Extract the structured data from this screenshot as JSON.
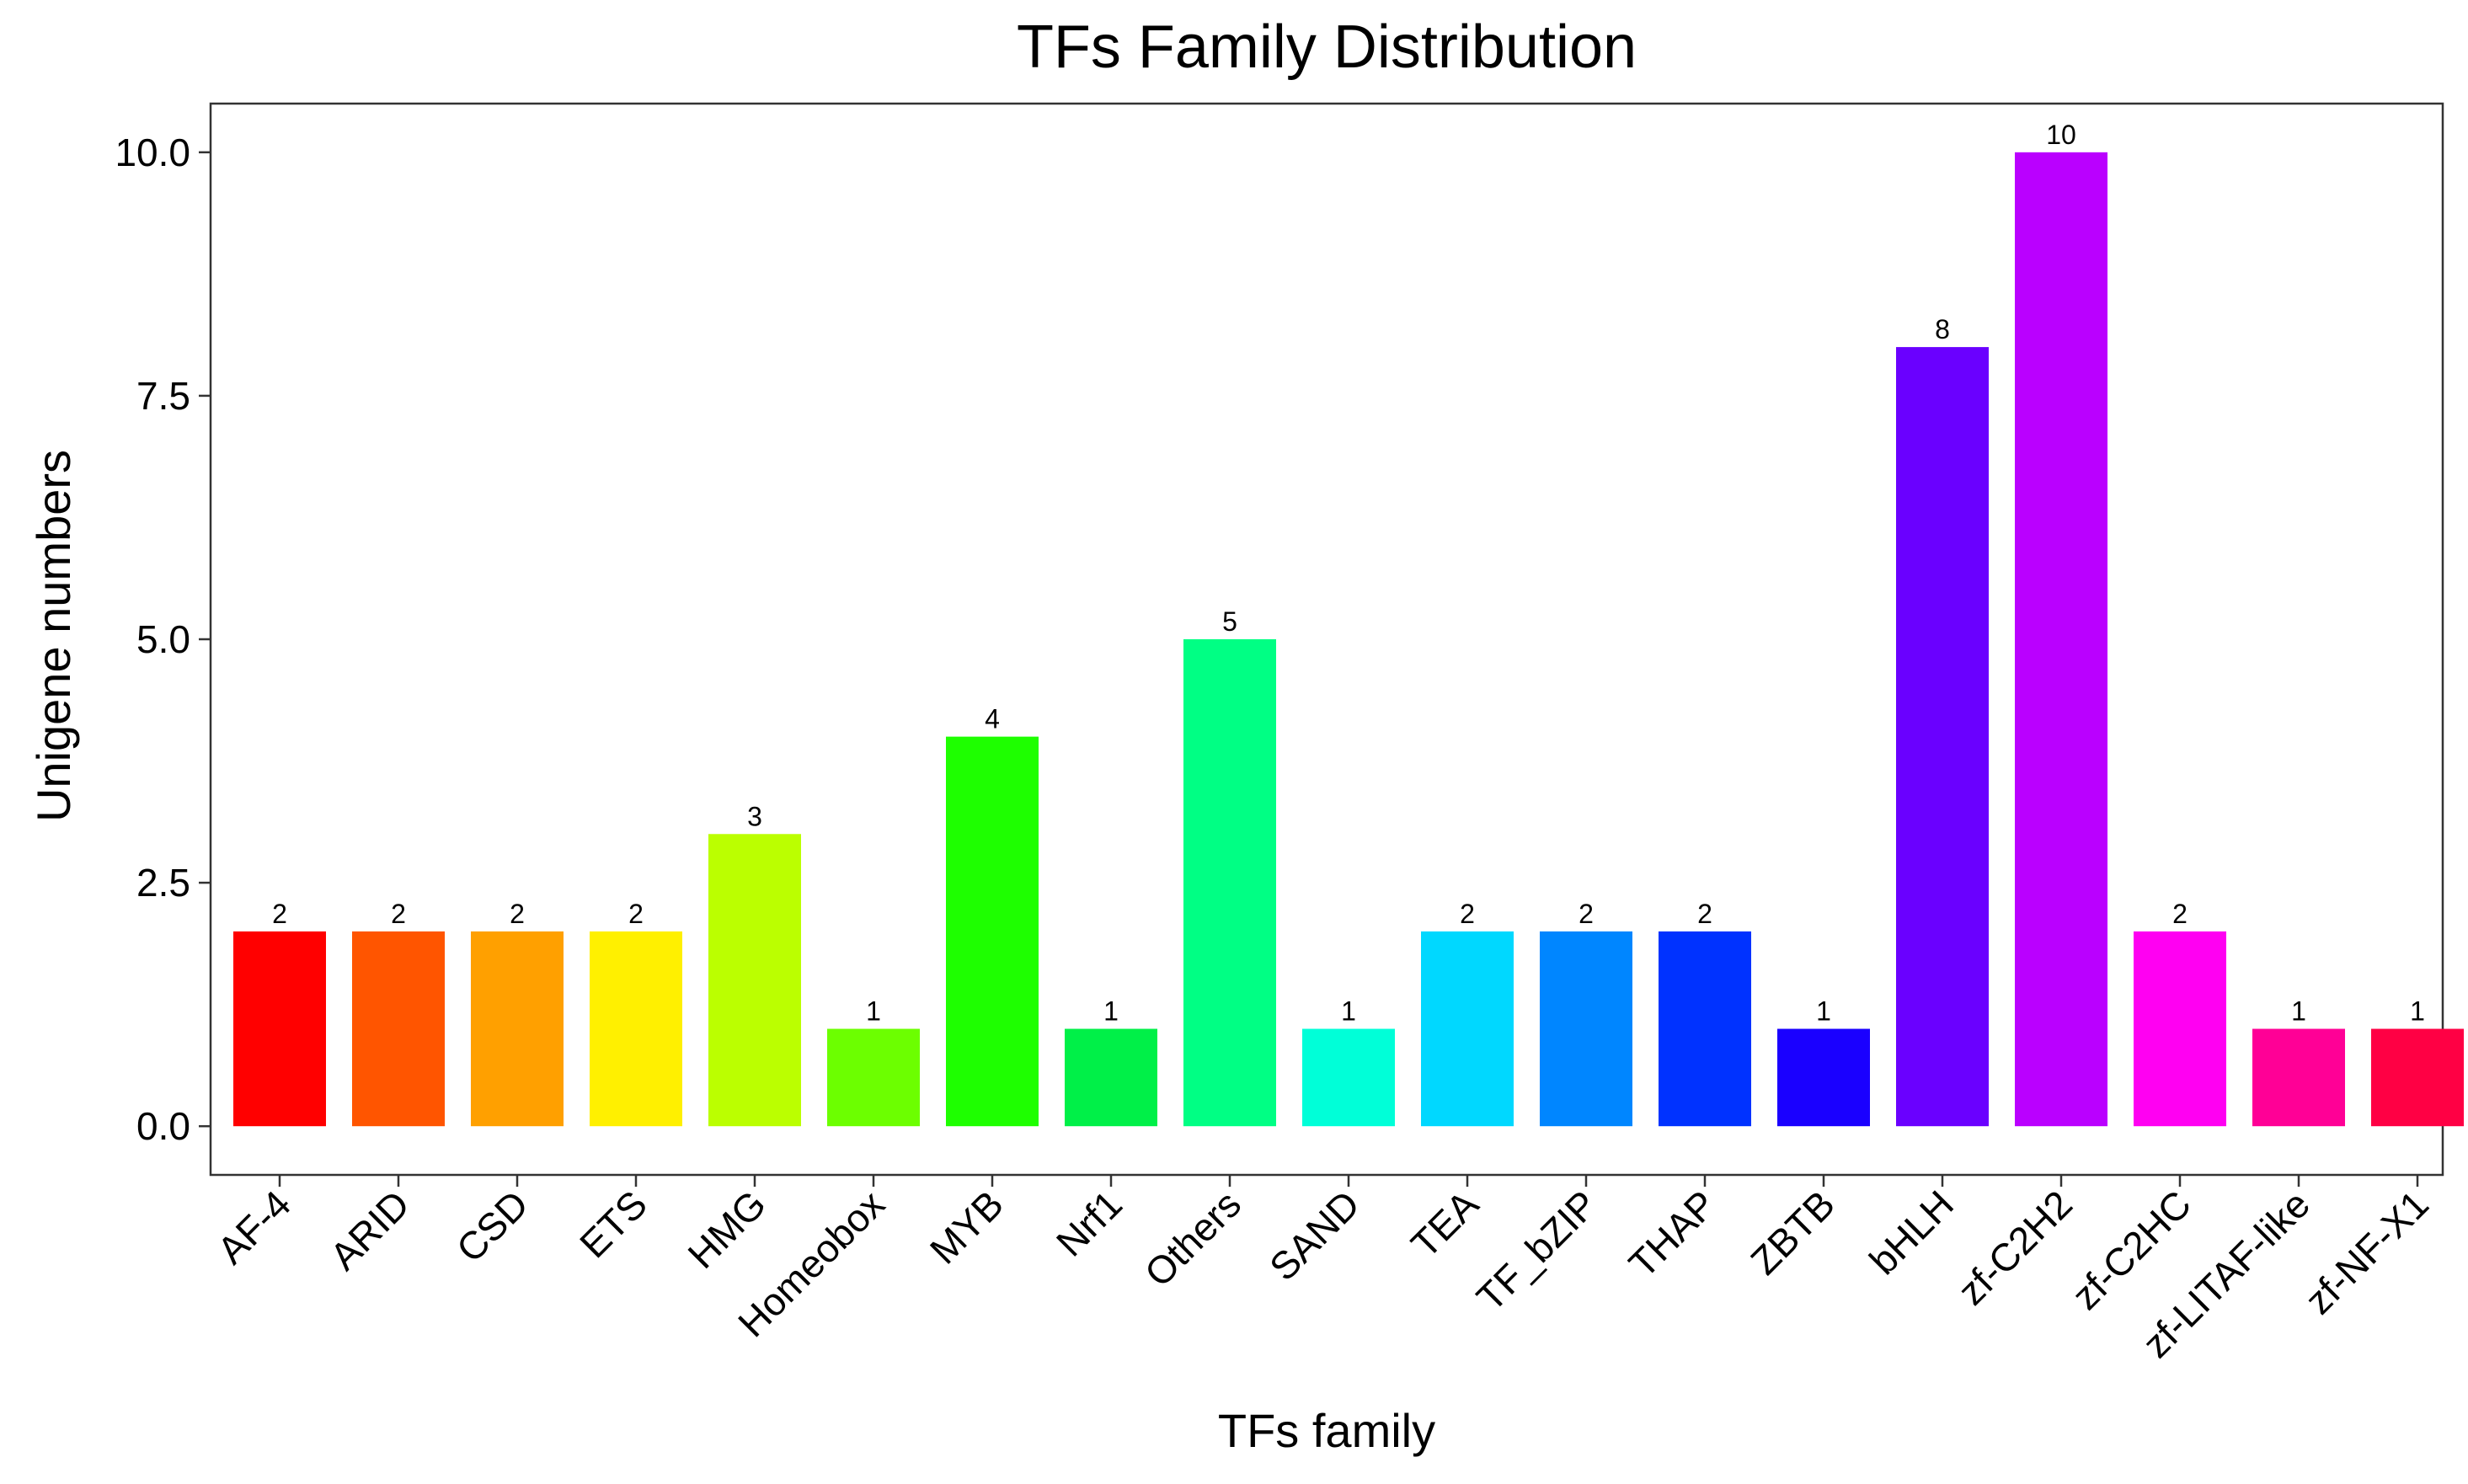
{
  "chart_data": {
    "type": "bar",
    "title": "TFs Family Distribution",
    "xlabel": "TFs family",
    "ylabel": "Unigene numbers",
    "categories": [
      "AF-4",
      "ARID",
      "CSD",
      "ETS",
      "HMG",
      "Homeobox",
      "MYB",
      "Nrf1",
      "Others",
      "SAND",
      "TEA",
      "TF_bZIP",
      "THAP",
      "ZBTB",
      "bHLH",
      "zf-C2H2",
      "zf-C2HC",
      "zf-LITAF-like",
      "zf-NF-X1"
    ],
    "values": [
      2,
      2,
      2,
      2,
      3,
      1,
      4,
      1,
      5,
      1,
      2,
      2,
      2,
      1,
      8,
      10,
      2,
      1,
      1
    ],
    "value_labels": [
      "2",
      "2",
      "2",
      "2",
      "3",
      "1",
      "4",
      "1",
      "5",
      "1",
      "2",
      "2",
      "2",
      "1",
      "8",
      "10",
      "2",
      "1",
      "1"
    ],
    "colors": [
      "#FF0000",
      "#FF5500",
      "#FFA000",
      "#FFF000",
      "#BBFF00",
      "#6CFF00",
      "#1EFF00",
      "#00F048",
      "#00FF84",
      "#00FFD8",
      "#00D8FF",
      "#0086FF",
      "#0032FF",
      "#1A00FF",
      "#6A00FF",
      "#BA00FF",
      "#FF00F2",
      "#FF0096",
      "#FF0044"
    ],
    "ylim": [
      -0.5,
      10.5
    ],
    "yticks": [
      0.0,
      2.5,
      5.0,
      7.5,
      10.0
    ],
    "ytick_labels": [
      "0.0",
      "2.5",
      "5.0",
      "7.5",
      "10.0"
    ],
    "grid": false,
    "legend": "none"
  }
}
